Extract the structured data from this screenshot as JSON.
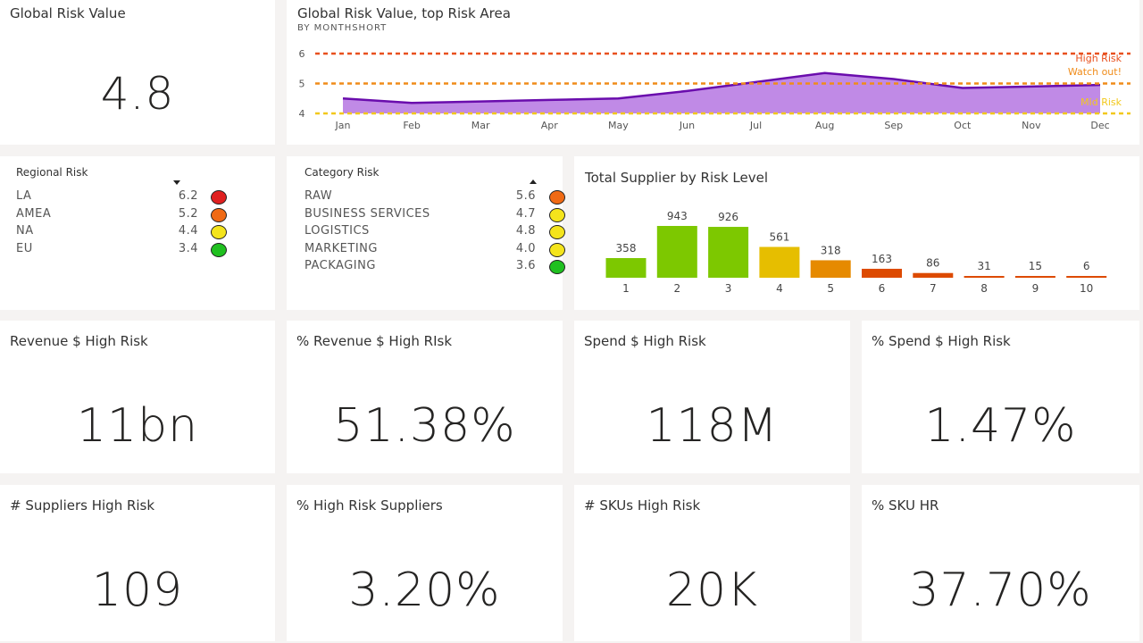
{
  "global_risk": {
    "title": "Global Risk Value",
    "value": "4.8"
  },
  "line_chart": {
    "title": "Global Risk Value, top Risk Area",
    "subtitle": "BY MONTHSHORT",
    "chart_data": {
      "type": "area",
      "x": [
        "Jan",
        "Feb",
        "Mar",
        "Apr",
        "May",
        "Jun",
        "Jul",
        "Aug",
        "Sep",
        "Oct",
        "Nov",
        "Dec"
      ],
      "series": [
        {
          "values": [
            4.5,
            4.35,
            4.4,
            4.45,
            4.5,
            4.75,
            5.05,
            5.35,
            5.15,
            4.85,
            4.9,
            4.95
          ]
        }
      ],
      "ylim": [
        4,
        6
      ],
      "yticks": [
        "6",
        "5",
        "4"
      ],
      "reference_lines": [
        {
          "label": "High Risk",
          "value": 6,
          "color": "#e8501e"
        },
        {
          "label": "Watch out!",
          "value": 5,
          "color": "#f08c1a"
        },
        {
          "label": "Mid Risk",
          "value": 4,
          "color": "#f2c81c"
        }
      ],
      "colors": {
        "line": "#6a0dad",
        "fill": "#c08ae6"
      }
    }
  },
  "regional": {
    "title": "Regional Risk",
    "rows": [
      {
        "label": "LA",
        "value": "6.2",
        "color": "#e02020"
      },
      {
        "label": "AMEA",
        "value": "5.2",
        "color": "#f06a14"
      },
      {
        "label": "NA",
        "value": "4.4",
        "color": "#f4e41c"
      },
      {
        "label": "EU",
        "value": "3.4",
        "color": "#20c020"
      }
    ]
  },
  "category": {
    "title": "Category Risk",
    "rows": [
      {
        "label": "RAW",
        "value": "5.6",
        "color": "#f06a14"
      },
      {
        "label": "BUSINESS SERVICES",
        "value": "4.7",
        "color": "#f4e41c"
      },
      {
        "label": "LOGISTICS",
        "value": "4.8",
        "color": "#f4e41c"
      },
      {
        "label": "MARKETING",
        "value": "4.0",
        "color": "#f4e41c"
      },
      {
        "label": "PACKAGING",
        "value": "3.6",
        "color": "#20c020"
      }
    ]
  },
  "bar_chart": {
    "title": "Total Supplier by Risk Level",
    "chart_data": {
      "type": "bar",
      "categories": [
        "1",
        "2",
        "3",
        "4",
        "5",
        "6",
        "7",
        "8",
        "9",
        "10"
      ],
      "values": [
        358,
        943,
        926,
        561,
        318,
        163,
        86,
        31,
        15,
        6
      ],
      "colors": [
        "#7dc800",
        "#7dc800",
        "#7dc800",
        "#e6be00",
        "#e68a00",
        "#dd4a00",
        "#dd4a00",
        "#dd4a00",
        "#dd4a00",
        "#dd4a00"
      ]
    }
  },
  "kpis": [
    {
      "title": "Revenue $ High Risk",
      "value": "11bn"
    },
    {
      "title": "% Revenue $ High RIsk",
      "value": "51.38%"
    },
    {
      "title": "Spend $ High Risk",
      "value": "118M"
    },
    {
      "title": "% Spend $ High Risk",
      "value": "1.47%"
    },
    {
      "title": "# Suppliers High Risk",
      "value": "109"
    },
    {
      "title": "% High Risk Suppliers",
      "value": "3.20%"
    },
    {
      "title": "# SKUs High Risk",
      "value": "20K"
    },
    {
      "title": "% SKU HR",
      "value": "37.70%"
    }
  ]
}
